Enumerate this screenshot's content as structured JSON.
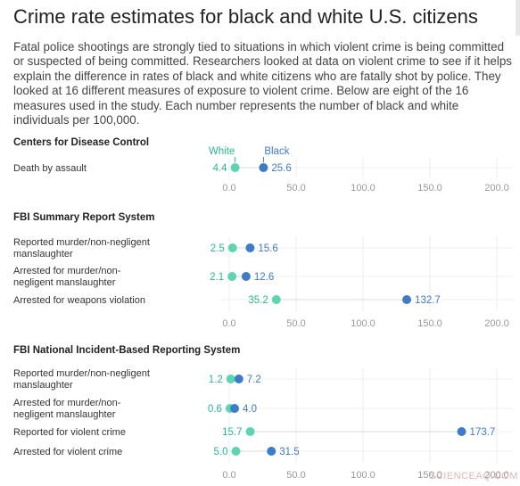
{
  "title": "Crime rate estimates for black and white U.S. citizens",
  "subtitle": "Fatal police shootings are strongly tied to situations in which violent crime is being committed or suspected of being committed. Researchers looked at data on violent crime to see if it helps explain the difference in rates of black and white citizens who are fatally shot by police. They looked at 16 different measures of exposure to violent crime. Below are eight of the 16 measures used in the study. Each number represents the number of black and white individuals per 100,000.",
  "watermark": "SCIENCEAQ.COM",
  "colors": {
    "white": "#5cd6b0",
    "black": "#3d7cc9",
    "white_label": "#2ab894",
    "black_label": "#3d7cc9"
  },
  "chart_data": {
    "type": "dot",
    "series": [
      {
        "name": "White"
      },
      {
        "name": "Black"
      }
    ],
    "xlim": [
      0,
      200
    ],
    "xticks": [
      "0.0",
      "50.0",
      "100.0",
      "150.0",
      "200.0"
    ],
    "panels": [
      {
        "heading": "Centers for Disease Control",
        "rows": [
          {
            "label": [
              "Death by assault"
            ],
            "white": 4.4,
            "black": 25.6,
            "white_label": "4.4",
            "black_label": "25.6"
          }
        ]
      },
      {
        "heading": "FBI Summary Report System",
        "rows": [
          {
            "label": [
              "Reported murder/non-negligent",
              "manslaughter"
            ],
            "white": 2.5,
            "black": 15.6,
            "white_label": "2.5",
            "black_label": "15.6"
          },
          {
            "label": [
              "Arrested for murder/non-",
              "negligent manslaughter"
            ],
            "white": 2.1,
            "black": 12.6,
            "white_label": "2.1",
            "black_label": "12.6"
          },
          {
            "label": [
              "Arrested for weapons violation"
            ],
            "white": 35.2,
            "black": 132.7,
            "white_label": "35.2",
            "black_label": "132.7"
          }
        ]
      },
      {
        "heading": "FBI National Incident-Based Reporting System",
        "rows": [
          {
            "label": [
              "Reported murder/non-negligent",
              "manslaughter"
            ],
            "white": 1.2,
            "black": 7.2,
            "white_label": "1.2",
            "black_label": "7.2"
          },
          {
            "label": [
              "Arrested for murder/non-",
              "negligent manslaughter"
            ],
            "white": 0.6,
            "black": 4.0,
            "white_label": "0.6",
            "black_label": "4.0"
          },
          {
            "label": [
              "Reported for violent crime"
            ],
            "white": 15.7,
            "black": 173.7,
            "white_label": "15.7",
            "black_label": "173.7"
          },
          {
            "label": [
              "Arrested for violent crime"
            ],
            "white": 5.0,
            "black": 31.5,
            "white_label": "5.0",
            "black_label": "31.5"
          }
        ]
      }
    ]
  }
}
